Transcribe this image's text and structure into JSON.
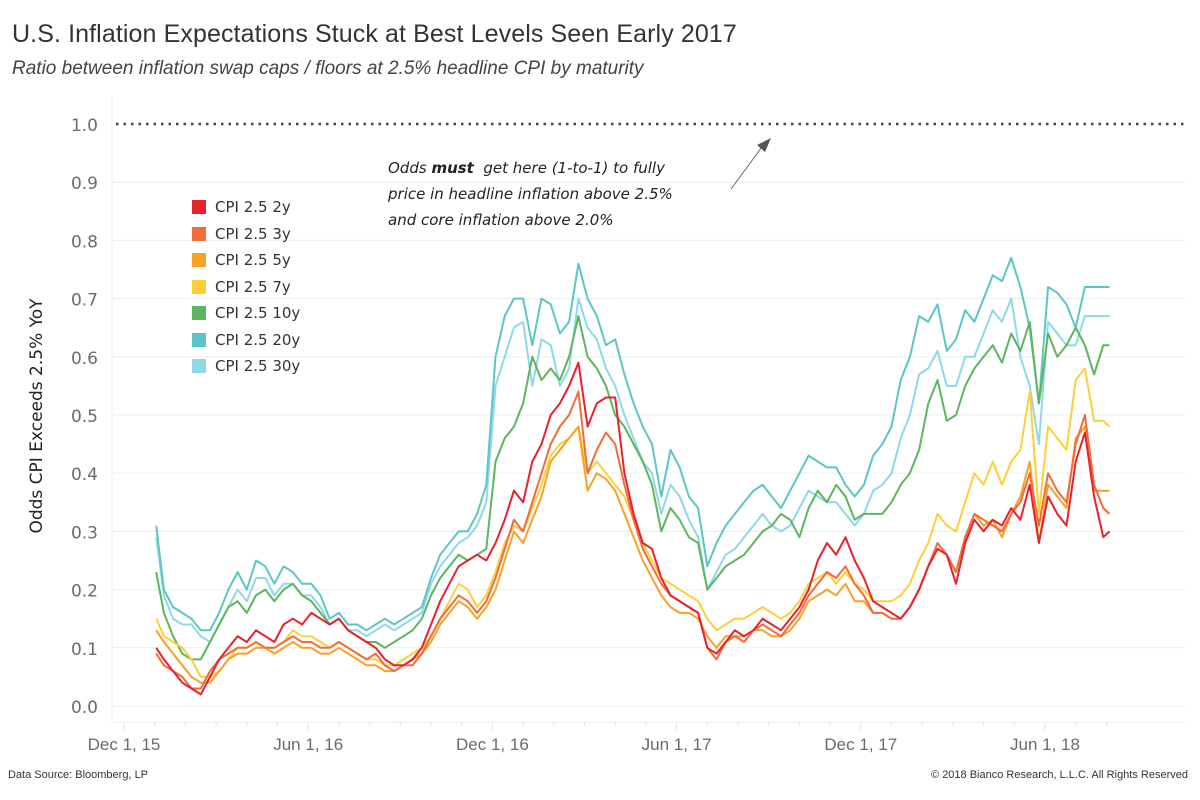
{
  "header": {
    "title": "U.S. Inflation Expectations Stuck at Best Levels Seen Early 2017",
    "subtitle": "Ratio between inflation swap caps / floors at 2.5% headline CPI by maturity"
  },
  "annotation": {
    "line1_pre": "Odds ",
    "line1_bold": "must",
    "line1_post": "  get here (1-to-1) to fully",
    "line2": "price in headline inflation above 2.5%",
    "line3": "and core inflation above 2.0%"
  },
  "footer": {
    "source": "Data Source: Bloomberg, LP",
    "copyright": "© 2018 Bianco Research, L.L.C. All Rights Reserved"
  },
  "chart_data": {
    "type": "line",
    "title": "U.S. Inflation Expectations Stuck at Best Levels Seen Early 2017",
    "subtitle": "Ratio between inflation swap caps / floors at 2.5% headline CPI by maturity",
    "xlabel": "",
    "ylabel": "Odds CPI Exceeds 2.5% YoY",
    "ylim": [
      0.0,
      1.0
    ],
    "yticks": [
      "0.0",
      "0.1",
      "0.2",
      "0.3",
      "0.4",
      "0.5",
      "0.6",
      "0.7",
      "0.8",
      "0.9",
      "1.0"
    ],
    "x_unit": "months since Dec 1, 2015",
    "xlim": [
      -0.4,
      33.2
    ],
    "xticks": [
      {
        "label": "Dec 1, 15",
        "month": 0
      },
      {
        "label": "Jun 1, 16",
        "month": 6
      },
      {
        "label": "Dec 1, 16",
        "month": 12
      },
      {
        "label": "Jun 1, 17",
        "month": 18
      },
      {
        "label": "Dec 1, 17",
        "month": 24
      },
      {
        "label": "Jun 1, 18",
        "month": 30
      }
    ],
    "grid": true,
    "legend_position": "top-left",
    "reference_line": {
      "y": 1.0,
      "style": "dotted",
      "color": "#444444"
    },
    "x": [
      1.05,
      1.3,
      1.6,
      1.9,
      2.2,
      2.5,
      2.8,
      3.1,
      3.4,
      3.7,
      4.0,
      4.3,
      4.6,
      4.9,
      5.2,
      5.5,
      5.8,
      6.1,
      6.4,
      6.7,
      7.0,
      7.3,
      7.6,
      7.9,
      8.2,
      8.5,
      8.8,
      9.1,
      9.4,
      9.7,
      10.0,
      10.3,
      10.6,
      10.9,
      11.2,
      11.5,
      11.8,
      12.1,
      12.4,
      12.7,
      13.0,
      13.3,
      13.6,
      13.9,
      14.2,
      14.5,
      14.8,
      15.1,
      15.4,
      15.7,
      16.0,
      16.3,
      16.6,
      16.9,
      17.2,
      17.5,
      17.8,
      18.1,
      18.4,
      18.7,
      19.0,
      19.3,
      19.6,
      19.9,
      20.2,
      20.5,
      20.8,
      21.1,
      21.4,
      21.7,
      22.0,
      22.3,
      22.6,
      22.9,
      23.2,
      23.5,
      23.8,
      24.1,
      24.4,
      24.7,
      25.0,
      25.3,
      25.6,
      25.9,
      26.2,
      26.5,
      26.8,
      27.1,
      27.4,
      27.7,
      28.0,
      28.3,
      28.6,
      28.9,
      29.2,
      29.5,
      29.8,
      30.1,
      30.4,
      30.7,
      31.0,
      31.3,
      31.6,
      31.9,
      32.1
    ],
    "series": [
      {
        "name": "CPI 2.5 2y",
        "color": "#e8212e",
        "values": [
          0.1,
          0.08,
          0.06,
          0.04,
          0.03,
          0.02,
          0.05,
          0.08,
          0.1,
          0.12,
          0.11,
          0.13,
          0.12,
          0.11,
          0.14,
          0.15,
          0.14,
          0.16,
          0.15,
          0.14,
          0.15,
          0.13,
          0.12,
          0.11,
          0.1,
          0.08,
          0.07,
          0.07,
          0.08,
          0.1,
          0.14,
          0.18,
          0.21,
          0.24,
          0.25,
          0.26,
          0.25,
          0.28,
          0.32,
          0.37,
          0.35,
          0.42,
          0.45,
          0.5,
          0.52,
          0.55,
          0.59,
          0.48,
          0.52,
          0.53,
          0.53,
          0.4,
          0.33,
          0.28,
          0.27,
          0.22,
          0.19,
          0.18,
          0.17,
          0.16,
          0.1,
          0.09,
          0.11,
          0.13,
          0.12,
          0.13,
          0.15,
          0.14,
          0.13,
          0.15,
          0.17,
          0.2,
          0.25,
          0.28,
          0.26,
          0.29,
          0.25,
          0.22,
          0.18,
          0.17,
          0.16,
          0.15,
          0.17,
          0.2,
          0.24,
          0.27,
          0.26,
          0.21,
          0.28,
          0.32,
          0.3,
          0.32,
          0.31,
          0.34,
          0.32,
          0.38,
          0.28,
          0.36,
          0.33,
          0.31,
          0.42,
          0.47,
          0.36,
          0.29,
          0.3,
          0.3,
          0.4
        ]
      },
      {
        "name": "CPI 2.5 3y",
        "color": "#f26b3a",
        "values": [
          0.09,
          0.07,
          0.06,
          0.05,
          0.03,
          0.03,
          0.06,
          0.08,
          0.09,
          0.1,
          0.1,
          0.11,
          0.1,
          0.1,
          0.11,
          0.12,
          0.11,
          0.11,
          0.1,
          0.1,
          0.11,
          0.1,
          0.09,
          0.08,
          0.09,
          0.07,
          0.06,
          0.07,
          0.07,
          0.09,
          0.12,
          0.15,
          0.17,
          0.19,
          0.18,
          0.16,
          0.18,
          0.22,
          0.27,
          0.32,
          0.3,
          0.35,
          0.4,
          0.45,
          0.48,
          0.5,
          0.54,
          0.4,
          0.44,
          0.47,
          0.45,
          0.38,
          0.32,
          0.27,
          0.24,
          0.21,
          0.19,
          0.18,
          0.17,
          0.16,
          0.1,
          0.08,
          0.11,
          0.12,
          0.11,
          0.13,
          0.14,
          0.13,
          0.12,
          0.14,
          0.16,
          0.19,
          0.21,
          0.23,
          0.22,
          0.24,
          0.21,
          0.19,
          0.16,
          0.16,
          0.15,
          0.15,
          0.17,
          0.2,
          0.24,
          0.28,
          0.26,
          0.23,
          0.29,
          0.33,
          0.32,
          0.31,
          0.3,
          0.33,
          0.35,
          0.4,
          0.31,
          0.4,
          0.37,
          0.35,
          0.45,
          0.5,
          0.38,
          0.34,
          0.33,
          0.34,
          0.4
        ]
      },
      {
        "name": "CPI 2.5 5y",
        "color": "#f7a128",
        "values": [
          0.13,
          0.11,
          0.09,
          0.07,
          0.05,
          0.04,
          0.04,
          0.06,
          0.08,
          0.09,
          0.09,
          0.1,
          0.1,
          0.09,
          0.1,
          0.11,
          0.1,
          0.1,
          0.09,
          0.09,
          0.1,
          0.09,
          0.08,
          0.07,
          0.07,
          0.06,
          0.06,
          0.07,
          0.08,
          0.09,
          0.11,
          0.14,
          0.16,
          0.18,
          0.17,
          0.15,
          0.17,
          0.2,
          0.25,
          0.3,
          0.28,
          0.32,
          0.36,
          0.42,
          0.44,
          0.46,
          0.48,
          0.37,
          0.4,
          0.39,
          0.37,
          0.33,
          0.29,
          0.25,
          0.22,
          0.19,
          0.17,
          0.16,
          0.16,
          0.15,
          0.12,
          0.1,
          0.12,
          0.12,
          0.12,
          0.13,
          0.13,
          0.12,
          0.12,
          0.13,
          0.15,
          0.18,
          0.19,
          0.2,
          0.19,
          0.21,
          0.18,
          0.18,
          0.16,
          0.16,
          0.15,
          0.15,
          0.17,
          0.2,
          0.24,
          0.27,
          0.26,
          0.23,
          0.29,
          0.33,
          0.31,
          0.32,
          0.29,
          0.33,
          0.36,
          0.42,
          0.28,
          0.38,
          0.36,
          0.34,
          0.46,
          0.48,
          0.37,
          0.37,
          0.37,
          0.34,
          0.4
        ]
      },
      {
        "name": "CPI 2.5 7y",
        "color": "#fcd03a",
        "values": [
          0.15,
          0.12,
          0.11,
          0.1,
          0.08,
          0.05,
          0.05,
          0.06,
          0.08,
          0.1,
          0.1,
          0.11,
          0.1,
          0.1,
          0.11,
          0.13,
          0.12,
          0.12,
          0.11,
          0.1,
          0.11,
          0.1,
          0.09,
          0.08,
          0.08,
          0.07,
          0.07,
          0.08,
          0.09,
          0.1,
          0.12,
          0.15,
          0.18,
          0.21,
          0.2,
          0.17,
          0.19,
          0.23,
          0.28,
          0.31,
          0.3,
          0.34,
          0.38,
          0.43,
          0.45,
          0.46,
          0.48,
          0.4,
          0.42,
          0.4,
          0.38,
          0.36,
          0.32,
          0.28,
          0.25,
          0.22,
          0.21,
          0.2,
          0.19,
          0.18,
          0.15,
          0.13,
          0.14,
          0.15,
          0.15,
          0.16,
          0.17,
          0.16,
          0.15,
          0.16,
          0.18,
          0.21,
          0.22,
          0.23,
          0.21,
          0.23,
          0.21,
          0.2,
          0.18,
          0.18,
          0.18,
          0.19,
          0.21,
          0.25,
          0.28,
          0.33,
          0.31,
          0.3,
          0.35,
          0.4,
          0.38,
          0.42,
          0.38,
          0.42,
          0.44,
          0.54,
          0.33,
          0.48,
          0.46,
          0.44,
          0.56,
          0.58,
          0.49,
          0.49,
          0.48,
          0.42,
          0.49
        ]
      },
      {
        "name": "CPI 2.5 10y",
        "color": "#5db55d",
        "values": [
          0.23,
          0.16,
          0.12,
          0.09,
          0.08,
          0.08,
          0.11,
          0.14,
          0.17,
          0.18,
          0.16,
          0.19,
          0.2,
          0.18,
          0.2,
          0.21,
          0.19,
          0.18,
          0.16,
          0.14,
          0.15,
          0.13,
          0.12,
          0.11,
          0.11,
          0.1,
          0.11,
          0.12,
          0.13,
          0.15,
          0.19,
          0.22,
          0.24,
          0.26,
          0.25,
          0.26,
          0.27,
          0.42,
          0.46,
          0.48,
          0.52,
          0.6,
          0.56,
          0.58,
          0.56,
          0.6,
          0.67,
          0.6,
          0.58,
          0.55,
          0.5,
          0.48,
          0.45,
          0.42,
          0.38,
          0.3,
          0.34,
          0.32,
          0.29,
          0.28,
          0.2,
          0.22,
          0.24,
          0.25,
          0.26,
          0.28,
          0.3,
          0.31,
          0.33,
          0.32,
          0.29,
          0.34,
          0.37,
          0.35,
          0.38,
          0.36,
          0.32,
          0.33,
          0.33,
          0.33,
          0.35,
          0.38,
          0.4,
          0.44,
          0.52,
          0.56,
          0.49,
          0.5,
          0.55,
          0.58,
          0.6,
          0.62,
          0.59,
          0.64,
          0.61,
          0.66,
          0.52,
          0.64,
          0.6,
          0.62,
          0.65,
          0.62,
          0.57,
          0.62,
          0.62,
          0.55,
          0.6
        ]
      },
      {
        "name": "CPI 2.5 20y",
        "color": "#5cc6c6",
        "values": [
          0.31,
          0.2,
          0.17,
          0.16,
          0.15,
          0.13,
          0.13,
          0.16,
          0.2,
          0.23,
          0.2,
          0.25,
          0.24,
          0.21,
          0.24,
          0.23,
          0.21,
          0.21,
          0.19,
          0.15,
          0.16,
          0.14,
          0.14,
          0.13,
          0.14,
          0.15,
          0.14,
          0.15,
          0.16,
          0.17,
          0.22,
          0.26,
          0.28,
          0.3,
          0.3,
          0.33,
          0.38,
          0.6,
          0.67,
          0.7,
          0.7,
          0.62,
          0.7,
          0.69,
          0.64,
          0.66,
          0.76,
          0.7,
          0.67,
          0.62,
          0.63,
          0.57,
          0.52,
          0.48,
          0.45,
          0.36,
          0.44,
          0.41,
          0.36,
          0.34,
          0.24,
          0.28,
          0.31,
          0.33,
          0.35,
          0.37,
          0.38,
          0.36,
          0.34,
          0.37,
          0.4,
          0.43,
          0.42,
          0.41,
          0.41,
          0.38,
          0.36,
          0.38,
          0.43,
          0.45,
          0.48,
          0.56,
          0.6,
          0.67,
          0.66,
          0.69,
          0.61,
          0.63,
          0.68,
          0.66,
          0.7,
          0.74,
          0.73,
          0.77,
          0.72,
          0.65,
          0.52,
          0.72,
          0.71,
          0.69,
          0.65,
          0.72,
          0.72,
          0.72,
          0.72,
          0.64,
          0.7
        ]
      },
      {
        "name": "CPI 2.5 30y",
        "color": "#8fd8e8",
        "values": [
          0.29,
          0.19,
          0.15,
          0.14,
          0.14,
          0.12,
          0.11,
          0.14,
          0.17,
          0.2,
          0.18,
          0.22,
          0.22,
          0.19,
          0.21,
          0.21,
          0.19,
          0.19,
          0.17,
          0.14,
          0.15,
          0.13,
          0.13,
          0.12,
          0.13,
          0.14,
          0.13,
          0.14,
          0.15,
          0.16,
          0.21,
          0.24,
          0.26,
          0.28,
          0.29,
          0.31,
          0.35,
          0.55,
          0.6,
          0.65,
          0.66,
          0.55,
          0.63,
          0.62,
          0.55,
          0.58,
          0.7,
          0.65,
          0.63,
          0.58,
          0.55,
          0.5,
          0.46,
          0.42,
          0.4,
          0.33,
          0.38,
          0.36,
          0.32,
          0.29,
          0.2,
          0.23,
          0.26,
          0.27,
          0.29,
          0.31,
          0.33,
          0.31,
          0.3,
          0.31,
          0.34,
          0.37,
          0.36,
          0.35,
          0.35,
          0.33,
          0.31,
          0.33,
          0.37,
          0.38,
          0.4,
          0.46,
          0.5,
          0.57,
          0.58,
          0.61,
          0.55,
          0.55,
          0.6,
          0.6,
          0.64,
          0.68,
          0.66,
          0.7,
          0.6,
          0.55,
          0.45,
          0.66,
          0.64,
          0.62,
          0.62,
          0.67,
          0.67,
          0.67,
          0.67,
          0.6,
          0.66
        ]
      }
    ]
  }
}
